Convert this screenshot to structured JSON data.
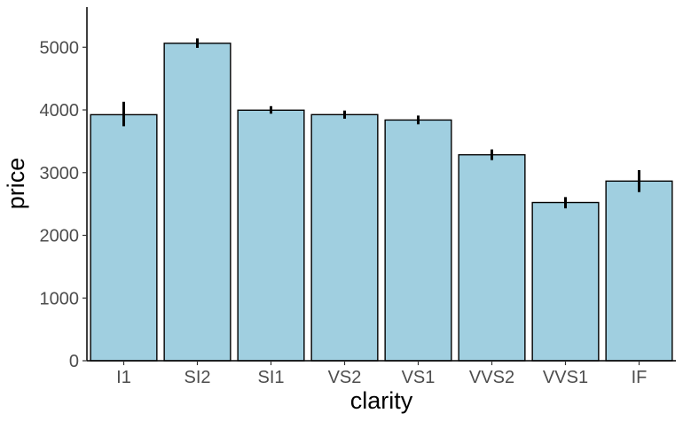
{
  "chart_data": {
    "type": "bar",
    "title": "",
    "xlabel": "clarity",
    "ylabel": "price",
    "categories": [
      "I1",
      "SI2",
      "SI1",
      "VS2",
      "VS1",
      "VVS2",
      "VVS1",
      "IF"
    ],
    "values": [
      3924,
      5063,
      3996,
      3925,
      3839,
      3284,
      2523,
      2865
    ],
    "error_low": [
      3740,
      4990,
      3940,
      3860,
      3770,
      3200,
      2430,
      2690
    ],
    "error_high": [
      4130,
      5140,
      4060,
      3990,
      3910,
      3370,
      2610,
      3040
    ],
    "ylim": [
      0,
      5640
    ],
    "yticks": [
      0,
      1000,
      2000,
      3000,
      4000,
      5000
    ],
    "ytick_labels": [
      "0",
      "1000",
      "2000",
      "3000",
      "4000",
      "5000"
    ],
    "grid": false,
    "legend": "none",
    "bar_color": "#a0cfe0",
    "edge_color": "#000000"
  }
}
